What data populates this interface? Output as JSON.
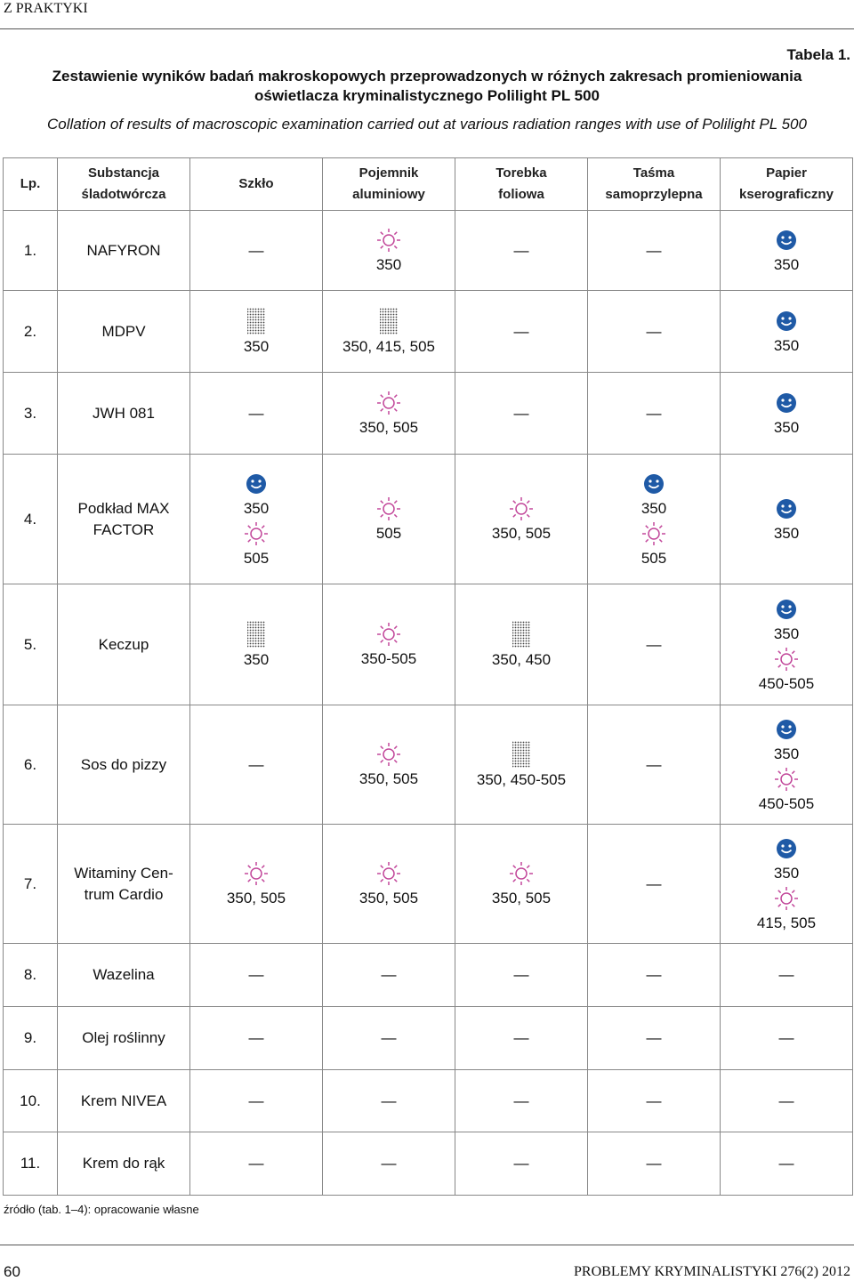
{
  "header": {
    "section": "Z PRAKTYKI",
    "table_label": "Tabela 1.",
    "title": "Zestawienie wyników badań makroskopowych przeprowadzonych w różnych zakresach promieniowania\noświetlacza kryminalistycznego Polilight PL 500",
    "title_en": "Collation of results of macroscopic examination carried out at various radiation ranges with use of Polilight PL 500"
  },
  "table": {
    "headers": [
      "Lp.",
      "Substancja\nśladotwórcza",
      "Szkło",
      "Pojemnik\naluminiowy",
      "Torebka\nfoliowa",
      "Taśma\nsamoprzylepna",
      "Papier\nkserograficzny"
    ],
    "rows": [
      {
        "lp": "1.",
        "name": "NAFYRON",
        "cells": [
          "—",
          [
            {
              "icon": "sun",
              "text": "350"
            }
          ],
          "—",
          "—",
          [
            {
              "icon": "smile",
              "text": "350"
            }
          ]
        ]
      },
      {
        "lp": "2.",
        "name": "MDPV",
        "cells": [
          [
            {
              "icon": "dots",
              "text": "350"
            }
          ],
          [
            {
              "icon": "dots",
              "text": "350, 415, 505"
            }
          ],
          "—",
          "—",
          [
            {
              "icon": "smile",
              "text": "350"
            }
          ]
        ]
      },
      {
        "lp": "3.",
        "name": "JWH 081",
        "cells": [
          "—",
          [
            {
              "icon": "sun",
              "text": "350, 505"
            }
          ],
          "—",
          "—",
          [
            {
              "icon": "smile",
              "text": "350"
            }
          ]
        ]
      },
      {
        "lp": "4.",
        "name": "Podkład MAX\nFACTOR",
        "cells": [
          [
            {
              "icon": "smile",
              "text": "350"
            },
            {
              "icon": "sun",
              "text": "505"
            }
          ],
          [
            {
              "icon": "sun",
              "text": "505"
            }
          ],
          [
            {
              "icon": "sun",
              "text": "350, 505"
            }
          ],
          [
            {
              "icon": "smile",
              "text": "350"
            },
            {
              "icon": "sun",
              "text": "505"
            }
          ],
          [
            {
              "icon": "smile",
              "text": "350"
            }
          ]
        ]
      },
      {
        "lp": "5.",
        "name": "Keczup",
        "cells": [
          [
            {
              "icon": "dots",
              "text": "350"
            }
          ],
          [
            {
              "icon": "sun",
              "text": "350-505"
            }
          ],
          [
            {
              "icon": "dots",
              "text": "350, 450"
            }
          ],
          "—",
          [
            {
              "icon": "smile",
              "text": "350"
            },
            {
              "icon": "sun",
              "text": "450-505"
            }
          ]
        ]
      },
      {
        "lp": "6.",
        "name": "Sos do pizzy",
        "cells": [
          "—",
          [
            {
              "icon": "sun",
              "text": "350, 505"
            }
          ],
          [
            {
              "icon": "dots",
              "text": "350, 450-505"
            }
          ],
          "—",
          [
            {
              "icon": "smile",
              "text": "350"
            },
            {
              "icon": "sun",
              "text": "450-505"
            }
          ]
        ]
      },
      {
        "lp": "7.",
        "name": "Witaminy Cen-\ntrum Cardio",
        "cells": [
          [
            {
              "icon": "sun",
              "text": "350, 505"
            }
          ],
          [
            {
              "icon": "sun",
              "text": "350, 505"
            }
          ],
          [
            {
              "icon": "sun",
              "text": "350, 505"
            }
          ],
          "—",
          [
            {
              "icon": "smile",
              "text": "350"
            },
            {
              "icon": "sun",
              "text": "415, 505"
            }
          ]
        ]
      },
      {
        "lp": "8.",
        "name": "Wazelina",
        "cells": [
          "—",
          "—",
          "—",
          "—",
          "—"
        ]
      },
      {
        "lp": "9.",
        "name": "Olej roślinny",
        "cells": [
          "—",
          "—",
          "—",
          "—",
          "—"
        ]
      },
      {
        "lp": "10.",
        "name": "Krem NIVEA",
        "cells": [
          "—",
          "—",
          "—",
          "—",
          "—"
        ]
      },
      {
        "lp": "11.",
        "name": "Krem do rąk",
        "cells": [
          "—",
          "—",
          "—",
          "—",
          "—"
        ]
      }
    ]
  },
  "footer": {
    "source": "źródło (tab. 1–4): opracowanie własne",
    "page": "60",
    "journal": "PROBLEMY KRYMINALISTYKI 276(2) 2012"
  }
}
